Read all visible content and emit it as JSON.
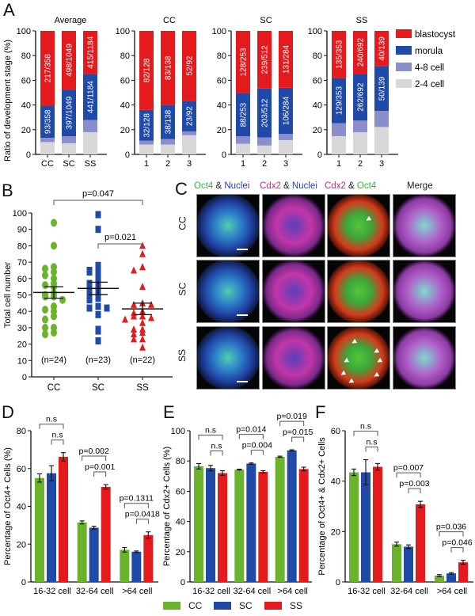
{
  "colors": {
    "blastocyst": "#e41a1c",
    "morula": "#1f4aa8",
    "cell_4_8": "#8a8fcc",
    "cell_2_4": "#d8d8d8",
    "CC": "#6ab42d",
    "SC": "#1f4aa8",
    "SS": "#e41a1c"
  },
  "panels": {
    "A": {
      "letter": "A"
    },
    "B": {
      "letter": "B"
    },
    "C": {
      "letter": "C"
    },
    "D": {
      "letter": "D"
    },
    "E": {
      "letter": "E"
    },
    "F": {
      "letter": "F"
    }
  },
  "chart_data": [
    {
      "id": "A-average",
      "type": "bar",
      "stacked": true,
      "title": "Average",
      "ylabel": "Ratio of development stage (%)",
      "ylim": [
        0,
        100
      ],
      "yticks": [
        0,
        20,
        40,
        60,
        80,
        100
      ],
      "categories": [
        "CC",
        "SC",
        "SS"
      ],
      "series": [
        {
          "name": "2-4 cell",
          "values": [
            10,
            9,
            18
          ]
        },
        {
          "name": "4-8 cell",
          "values": [
            3.4,
            5.7,
            9.8
          ]
        },
        {
          "name": "morula",
          "values": [
            26,
            37.8,
            37.2
          ],
          "labels": [
            "93/358",
            "397/1049",
            "441/1184"
          ]
        },
        {
          "name": "blastocyst",
          "values": [
            60.6,
            47.5,
            35
          ],
          "labels": [
            "217/358",
            "498/1049",
            "415/1184"
          ]
        }
      ]
    },
    {
      "id": "A-CC",
      "type": "bar",
      "stacked": true,
      "title": "CC",
      "ylim": [
        0,
        100
      ],
      "yticks": [
        0,
        20,
        40,
        60,
        80,
        100
      ],
      "categories": [
        "1",
        "2",
        "3"
      ],
      "series": [
        {
          "name": "2-4 cell",
          "values": [
            8,
            8,
            15.5
          ]
        },
        {
          "name": "4-8 cell",
          "values": [
            3,
            4.5,
            3
          ]
        },
        {
          "name": "morula",
          "values": [
            25,
            27.5,
            25
          ],
          "labels": [
            "32/128",
            "38/138",
            "23/92"
          ]
        },
        {
          "name": "blastocyst",
          "values": [
            64,
            60,
            56.5
          ],
          "labels": [
            "82/128",
            "83/138",
            "52/92"
          ]
        }
      ]
    },
    {
      "id": "A-SC",
      "type": "bar",
      "stacked": true,
      "title": "SC",
      "ylim": [
        0,
        100
      ],
      "yticks": [
        0,
        20,
        40,
        60,
        80,
        100
      ],
      "categories": [
        "1",
        "2",
        "3"
      ],
      "series": [
        {
          "name": "2-4 cell",
          "values": [
            8.6,
            7.2,
            11.6
          ]
        },
        {
          "name": "4-8 cell",
          "values": [
            6,
            6.5,
            5
          ]
        },
        {
          "name": "morula",
          "values": [
            34.8,
            39.6,
            37.3
          ],
          "labels": [
            "88/253",
            "203/512",
            "106/284"
          ]
        },
        {
          "name": "blastocyst",
          "values": [
            50.6,
            46.7,
            46.1
          ],
          "labels": [
            "128/253",
            "239/512",
            "131/284"
          ]
        }
      ]
    },
    {
      "id": "A-SS",
      "type": "bar",
      "stacked": true,
      "title": "SS",
      "ylim": [
        0,
        100
      ],
      "yticks": [
        0,
        20,
        40,
        60,
        80,
        100
      ],
      "categories": [
        "1",
        "2",
        "3"
      ],
      "series": [
        {
          "name": "2-4 cell",
          "values": [
            14.8,
            17.9,
            22.2
          ]
        },
        {
          "name": "4-8 cell",
          "values": [
            10.5,
            9.5,
            13
          ]
        },
        {
          "name": "morula",
          "values": [
            36.5,
            37.9,
            36
          ],
          "labels": [
            "129/353",
            "262/692",
            "50/139"
          ]
        },
        {
          "name": "blastocyst",
          "values": [
            38.2,
            34.7,
            28.8
          ],
          "labels": [
            "135/353",
            "240/692",
            "40/139"
          ]
        }
      ],
      "legend": {
        "placement": "right",
        "entries": [
          "blastocyst",
          "morula",
          "4-8 cell",
          "2-4 cell"
        ]
      }
    },
    {
      "id": "B",
      "type": "scatter",
      "ylabel": "Total cell number",
      "ylim": [
        0,
        100
      ],
      "yticks": [
        0,
        10,
        20,
        30,
        40,
        50,
        60,
        70,
        80,
        90,
        100
      ],
      "categories": [
        "CC",
        "SC",
        "SS"
      ],
      "series": [
        {
          "name": "CC",
          "marker": "circle",
          "n_label": "(n=24)",
          "mean": 51.5,
          "sem": 3.5,
          "values": [
            94,
            80,
            67,
            66,
            64,
            62,
            60,
            57,
            56,
            55,
            51,
            50,
            49,
            49,
            47,
            43,
            41,
            40,
            37,
            35,
            30,
            30,
            27,
            26
          ]
        },
        {
          "name": "SC",
          "marker": "square",
          "n_label": "(n=23)",
          "mean": 54,
          "sem": 3.8,
          "values": [
            99,
            90,
            68,
            67,
            65,
            64,
            64,
            60,
            58,
            57,
            55,
            54,
            52,
            50,
            48,
            47,
            43,
            42,
            42,
            38,
            29,
            28,
            22
          ]
        },
        {
          "name": "SS",
          "marker": "triangle",
          "n_label": "(n=22)",
          "mean": 41.5,
          "sem": 3.5,
          "values": [
            80,
            75,
            67,
            65,
            55,
            45,
            44,
            44,
            40,
            39,
            37,
            37,
            36,
            35,
            33,
            29,
            29,
            27,
            26,
            23,
            23,
            18
          ]
        }
      ],
      "annotations": [
        {
          "from": "CC",
          "to": "SS",
          "text": "p=0.047"
        },
        {
          "from": "SC",
          "to": "SS",
          "text": "p=0.021"
        }
      ]
    },
    {
      "id": "D",
      "type": "bar",
      "ylabel": "Percentage of Oct4+ Cells (%)",
      "ylim": [
        0,
        80
      ],
      "yticks": [
        0,
        20,
        40,
        60,
        80
      ],
      "categories": [
        "16-32 cell",
        "32-64 cell",
        ">64 cell"
      ],
      "series": [
        {
          "name": "CC",
          "values": [
            55,
            31.5,
            17
          ],
          "errors": [
            2.2,
            0.8,
            1.2
          ]
        },
        {
          "name": "SC",
          "values": [
            57.5,
            28.7,
            16
          ],
          "errors": [
            4,
            0.8,
            0.4
          ]
        },
        {
          "name": "SS",
          "values": [
            66.2,
            50.3,
            24.8
          ],
          "errors": [
            2.2,
            1.2,
            1.7
          ]
        }
      ],
      "annotations": [
        {
          "group": 0,
          "from": "CC",
          "to": "SS",
          "text": "n.s"
        },
        {
          "group": 0,
          "from": "SC",
          "to": "SS",
          "text": "n.s"
        },
        {
          "group": 1,
          "from": "CC",
          "to": "SS",
          "text": "p=0.002"
        },
        {
          "group": 1,
          "from": "SC",
          "to": "SS",
          "text": "p=0.001"
        },
        {
          "group": 2,
          "from": "CC",
          "to": "SS",
          "text": "p=0.1311"
        },
        {
          "group": 2,
          "from": "SC",
          "to": "SS",
          "text": "p=0.0418"
        }
      ]
    },
    {
      "id": "E",
      "type": "bar",
      "ylabel": "Percentage of Cdx2+ Cells (%)",
      "ylim": [
        0,
        100
      ],
      "yticks": [
        0,
        20,
        40,
        60,
        80,
        100
      ],
      "categories": [
        "16-32 cell",
        "32-64 cell",
        ">64 cell"
      ],
      "series": [
        {
          "name": "CC",
          "values": [
            76.5,
            74.3,
            82.8
          ],
          "errors": [
            1.8,
            0.3,
            0.4
          ]
        },
        {
          "name": "SC",
          "values": [
            75.3,
            78.3,
            87
          ],
          "errors": [
            1.8,
            0.4,
            0.4
          ]
        },
        {
          "name": "SS",
          "values": [
            72,
            72.8,
            74.7
          ],
          "errors": [
            1.5,
            0.8,
            1.2
          ]
        }
      ],
      "annotations": [
        {
          "group": 0,
          "from": "CC",
          "to": "SS",
          "text": "n.s"
        },
        {
          "group": 0,
          "from": "SC",
          "to": "SS",
          "text": "n.s"
        },
        {
          "group": 1,
          "from": "CC",
          "to": "SS",
          "text": "p=0.014"
        },
        {
          "group": 1,
          "from": "SC",
          "to": "SS",
          "text": "p=0.004"
        },
        {
          "group": 2,
          "from": "CC",
          "to": "SS",
          "text": "p=0.019"
        },
        {
          "group": 2,
          "from": "SC",
          "to": "SS",
          "text": "p=0.015"
        }
      ]
    },
    {
      "id": "F",
      "type": "bar",
      "ylabel": "Percentage of Oct4+ & Cdx2+ Cells",
      "ylim": [
        0,
        60
      ],
      "yticks": [
        0,
        20,
        40,
        60
      ],
      "categories": [
        "16-32 cell",
        "32-64 cell",
        ">64 cell"
      ],
      "series": [
        {
          "name": "CC",
          "values": [
            43.5,
            15,
            2.5
          ],
          "errors": [
            1.3,
            0.8,
            0.4
          ]
        },
        {
          "name": "SC",
          "values": [
            43.5,
            14,
            3.4
          ],
          "errors": [
            5,
            0.7,
            0.3
          ]
        },
        {
          "name": "SS",
          "values": [
            45.7,
            30.8,
            7.8
          ],
          "errors": [
            1.3,
            1.2,
            0.8
          ]
        }
      ],
      "annotations": [
        {
          "group": 0,
          "from": "CC",
          "to": "SS",
          "text": "n.s"
        },
        {
          "group": 0,
          "from": "SC",
          "to": "SS",
          "text": "n.s"
        },
        {
          "group": 1,
          "from": "CC",
          "to": "SS",
          "text": "p=0.007"
        },
        {
          "group": 1,
          "from": "SC",
          "to": "SS",
          "text": "p=0.003"
        },
        {
          "group": 2,
          "from": "CC",
          "to": "SS",
          "text": "p=0.036"
        },
        {
          "group": 2,
          "from": "SC",
          "to": "SS",
          "text": "p=0.046"
        }
      ]
    }
  ],
  "micrographs": {
    "column_headers": [
      {
        "parts": [
          {
            "t": "Oct4",
            "c": "green"
          },
          {
            "t": " & ",
            "c": "black"
          },
          {
            "t": "Nuclei",
            "c": "blue"
          }
        ]
      },
      {
        "parts": [
          {
            "t": "Cdx2",
            "c": "magenta"
          },
          {
            "t": " & ",
            "c": "black"
          },
          {
            "t": "Nuclei",
            "c": "blue"
          }
        ]
      },
      {
        "parts": [
          {
            "t": "Cdx2",
            "c": "magenta"
          },
          {
            "t": " & ",
            "c": "black"
          },
          {
            "t": "Oct4",
            "c": "green"
          }
        ]
      },
      {
        "parts": [
          {
            "t": "Merge",
            "c": "black"
          }
        ]
      }
    ],
    "row_labels": [
      "CC",
      "SC",
      "SS"
    ],
    "arrowheads_per_row": [
      1,
      0,
      7
    ]
  },
  "bottom_legend": {
    "entries": [
      "CC",
      "SC",
      "SS"
    ]
  }
}
